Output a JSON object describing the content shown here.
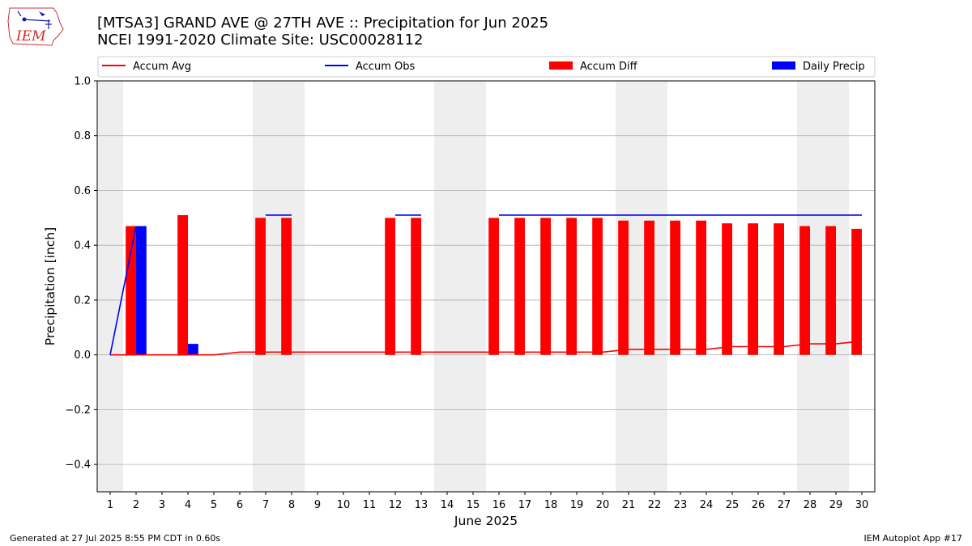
{
  "logo": {
    "text": "IEM",
    "color": "#d62728"
  },
  "title": {
    "line1": "[MTSA3] GRAND AVE @ 27TH AVE :: Precipitation for Jun 2025",
    "line2": "NCEI 1991-2020 Climate Site: USC00028112"
  },
  "footer": {
    "left": "Generated at 27 Jul 2025 8:55 PM CDT in 0.60s",
    "right": "IEM Autoplot App #17"
  },
  "legend": [
    {
      "label": "Accum Avg",
      "kind": "line",
      "color": "#ff0000"
    },
    {
      "label": "Accum Obs",
      "kind": "line",
      "color": "#0000ff"
    },
    {
      "label": "Accum Diff",
      "kind": "bar",
      "color": "#ff0000"
    },
    {
      "label": "Daily Precip",
      "kind": "bar",
      "color": "#0000ff"
    }
  ],
  "chart_data": {
    "type": "bar",
    "xlabel": "June 2025",
    "ylabel": "Precipitation [inch]",
    "ylim": [
      -0.5,
      1.0
    ],
    "yticks": [
      -0.4,
      -0.2,
      0.0,
      0.2,
      0.4,
      0.6,
      0.8,
      1.0
    ],
    "ytick_labels": [
      "−0.4",
      "−0.2",
      "0.0",
      "0.2",
      "0.4",
      "0.6",
      "0.8",
      "1.0"
    ],
    "grid": "horizontal",
    "legend_placement": "top",
    "days": [
      1,
      2,
      3,
      4,
      5,
      6,
      7,
      8,
      9,
      10,
      11,
      12,
      13,
      14,
      15,
      16,
      17,
      18,
      19,
      20,
      21,
      22,
      23,
      24,
      25,
      26,
      27,
      28,
      29,
      30
    ],
    "weekend_days": [
      1,
      7,
      8,
      14,
      15,
      21,
      22,
      28,
      29
    ],
    "series": [
      {
        "name": "Accum Avg",
        "type": "line",
        "color": "#ff0000",
        "values": [
          0.0,
          0.0,
          0.0,
          0.0,
          0.0,
          0.01,
          0.01,
          0.01,
          0.01,
          0.01,
          0.01,
          0.01,
          0.01,
          0.01,
          0.01,
          0.01,
          0.01,
          0.01,
          0.01,
          0.01,
          0.02,
          0.02,
          0.02,
          0.02,
          0.03,
          0.03,
          0.03,
          0.04,
          0.04,
          0.05
        ]
      },
      {
        "name": "Accum Obs",
        "type": "line",
        "color": "#0000ff",
        "values": [
          0.0,
          0.47,
          null,
          0.51,
          null,
          null,
          0.51,
          0.51,
          null,
          null,
          null,
          0.51,
          0.51,
          null,
          null,
          0.51,
          0.51,
          0.51,
          0.51,
          0.51,
          0.51,
          0.51,
          0.51,
          0.51,
          0.51,
          0.51,
          0.51,
          0.51,
          0.51,
          0.51
        ]
      },
      {
        "name": "Accum Diff",
        "type": "bar",
        "color": "#ff0000",
        "values": [
          0.0,
          0.47,
          0.0,
          0.51,
          0.0,
          0.0,
          0.5,
          0.5,
          0.0,
          0.0,
          0.0,
          0.5,
          0.5,
          0.0,
          0.0,
          0.5,
          0.5,
          0.5,
          0.5,
          0.5,
          0.49,
          0.49,
          0.49,
          0.49,
          0.48,
          0.48,
          0.48,
          0.47,
          0.47,
          0.46
        ]
      },
      {
        "name": "Daily Precip",
        "type": "bar",
        "color": "#0000ff",
        "values": [
          0.0,
          0.47,
          0.0,
          0.04,
          0.0,
          0.0,
          0.0,
          0.0,
          0.0,
          0.0,
          0.0,
          0.0,
          0.0,
          0.0,
          0.0,
          0.0,
          0.0,
          0.0,
          0.0,
          0.0,
          0.0,
          0.0,
          0.0,
          0.0,
          0.0,
          0.0,
          0.0,
          0.0,
          0.0,
          0.0
        ]
      }
    ]
  }
}
